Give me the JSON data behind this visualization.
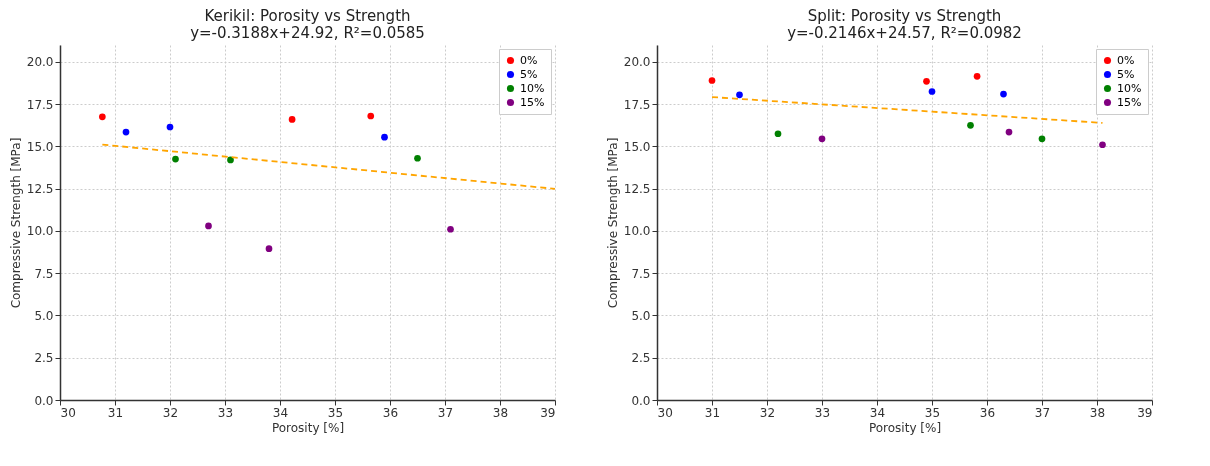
{
  "chart_data": [
    {
      "type": "scatter",
      "title": "Kerikil: Porosity vs Strength",
      "subtitle": "y=-0.3188x+24.92, R²=0.0585",
      "xlabel": "Porosity [%]",
      "ylabel": "Compressive Strength [MPa]",
      "xlim": [
        30,
        39
      ],
      "xticks": [
        30,
        31,
        32,
        33,
        34,
        35,
        36,
        37,
        38,
        39
      ],
      "ylim": [
        0,
        21
      ],
      "yticks": [
        {
          "value": 0,
          "label": "0.0"
        },
        {
          "value": 2.5,
          "label": "2.5"
        },
        {
          "value": 5,
          "label": "5.0"
        },
        {
          "value": 7.5,
          "label": "7.5"
        },
        {
          "value": 10,
          "label": "10.0"
        },
        {
          "value": 12.5,
          "label": "12.5"
        },
        {
          "value": 15,
          "label": "15.0"
        },
        {
          "value": 17.5,
          "label": "17.5"
        },
        {
          "value": 20,
          "label": "20.0"
        }
      ],
      "grid": true,
      "legend": "top right",
      "marker": "circle",
      "series": [
        {
          "name": "0%",
          "color": "#ff0000",
          "x": [
            30.77,
            34.22,
            35.65
          ],
          "values": [
            16.75,
            16.6,
            16.8
          ]
        },
        {
          "name": "5%",
          "color": "#0000ff",
          "x": [
            31.2,
            32.0,
            35.9
          ],
          "values": [
            15.85,
            16.15,
            15.55
          ]
        },
        {
          "name": "10%",
          "color": "#008000",
          "x": [
            32.1,
            33.1,
            36.5
          ],
          "values": [
            14.25,
            14.2,
            14.3
          ]
        },
        {
          "name": "15%",
          "color": "#800080",
          "x": [
            32.7,
            33.8,
            37.1
          ],
          "values": [
            10.3,
            8.95,
            10.1
          ]
        },
        {
          "type": "line",
          "color": "#ffa500",
          "line_style": "dashed",
          "marker": "none",
          "x": [
            30.77,
            39
          ],
          "values": [
            15.11,
            12.49
          ]
        }
      ]
    },
    {
      "type": "scatter",
      "title": "Split: Porosity vs Strength",
      "subtitle": "y=-0.2146x+24.57, R²=0.0982",
      "xlabel": "Porosity [%]",
      "ylabel": "Compressive Strength [MPa]",
      "xlim": [
        30,
        39
      ],
      "xticks": [
        30,
        31,
        32,
        33,
        34,
        35,
        36,
        37,
        38,
        39
      ],
      "ylim": [
        0,
        21
      ],
      "yticks": [
        {
          "value": 0,
          "label": "0.0"
        },
        {
          "value": 2.5,
          "label": "2.5"
        },
        {
          "value": 5,
          "label": "5.0"
        },
        {
          "value": 7.5,
          "label": "7.5"
        },
        {
          "value": 10,
          "label": "10.0"
        },
        {
          "value": 12.5,
          "label": "12.5"
        },
        {
          "value": 15,
          "label": "15.0"
        },
        {
          "value": 17.5,
          "label": "17.5"
        },
        {
          "value": 20,
          "label": "20.0"
        }
      ],
      "grid": true,
      "legend": "top right",
      "marker": "circle",
      "series": [
        {
          "name": "0%",
          "color": "#ff0000",
          "x": [
            31.0,
            34.9,
            35.82
          ],
          "values": [
            18.9,
            18.85,
            19.15
          ]
        },
        {
          "name": "5%",
          "color": "#0000ff",
          "x": [
            31.5,
            35.0,
            36.3
          ],
          "values": [
            18.05,
            18.25,
            18.1
          ]
        },
        {
          "name": "10%",
          "color": "#008000",
          "x": [
            32.2,
            35.7,
            37.0
          ],
          "values": [
            15.75,
            16.25,
            15.45
          ]
        },
        {
          "name": "15%",
          "color": "#800080",
          "x": [
            33.0,
            36.4,
            38.1
          ],
          "values": [
            15.45,
            15.85,
            15.1
          ]
        },
        {
          "type": "line",
          "color": "#ffa500",
          "line_style": "dashed",
          "marker": "none",
          "x": [
            31.0,
            38.1
          ],
          "values": [
            17.92,
            16.39
          ]
        }
      ]
    }
  ]
}
